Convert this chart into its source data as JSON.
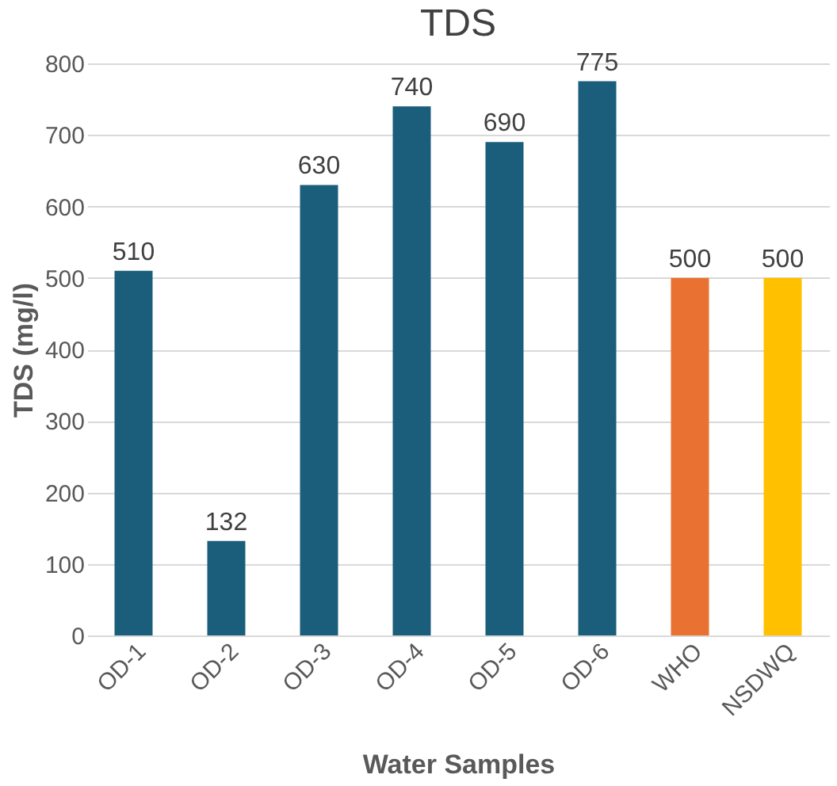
{
  "chart_data": {
    "type": "bar",
    "title": "TDS",
    "xlabel": "Water Samples",
    "ylabel": "TDS (mg/l)",
    "categories": [
      "OD-1",
      "OD-2",
      "OD-3",
      "OD-4",
      "OD-5",
      "OD-6",
      "WHO",
      "NSDWQ"
    ],
    "values": [
      510,
      132,
      630,
      740,
      690,
      775,
      500,
      500
    ],
    "colors": [
      "#1b5e7b",
      "#1b5e7b",
      "#1b5e7b",
      "#1b5e7b",
      "#1b5e7b",
      "#1b5e7b",
      "#e97132",
      "#ffc000"
    ],
    "ylim": [
      0,
      800
    ],
    "yticks": [
      0,
      100,
      200,
      300,
      400,
      500,
      600,
      700,
      800
    ],
    "grid": "y",
    "data_labels": true
  }
}
